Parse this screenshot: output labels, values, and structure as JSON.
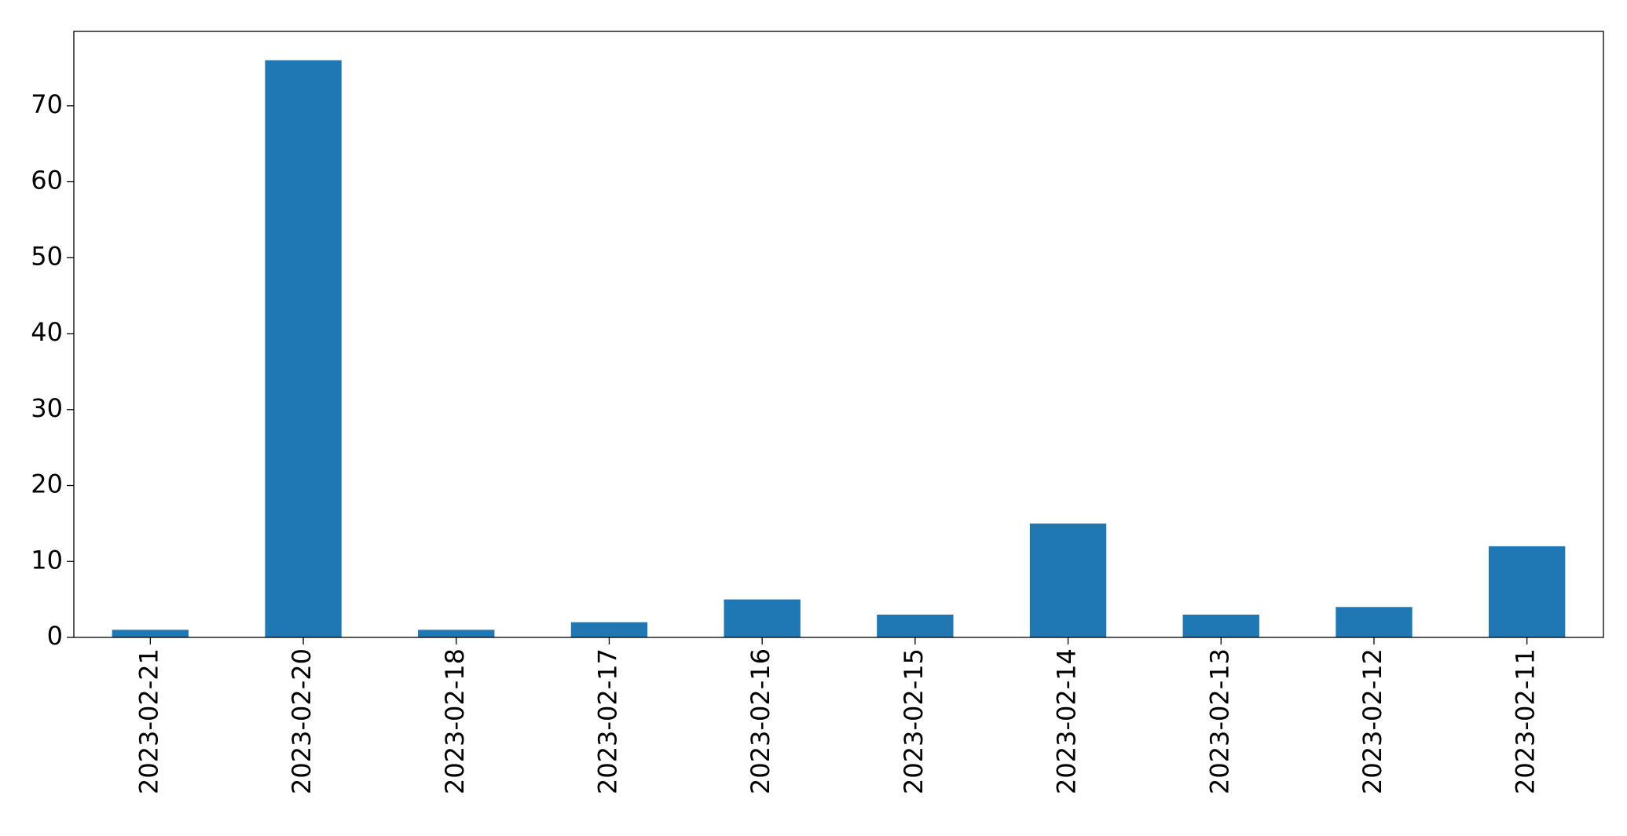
{
  "chart_data": {
    "type": "bar",
    "categories": [
      "2023-02-21",
      "2023-02-20",
      "2023-02-18",
      "2023-02-17",
      "2023-02-16",
      "2023-02-15",
      "2023-02-14",
      "2023-02-13",
      "2023-02-12",
      "2023-02-11"
    ],
    "values": [
      1,
      76,
      1,
      2,
      5,
      3,
      15,
      3,
      4,
      12
    ],
    "color": "#1f77b4",
    "ylim": [
      0,
      79.8
    ],
    "yticks": [
      0,
      10,
      20,
      30,
      40,
      50,
      60,
      70
    ],
    "grid": false
  }
}
